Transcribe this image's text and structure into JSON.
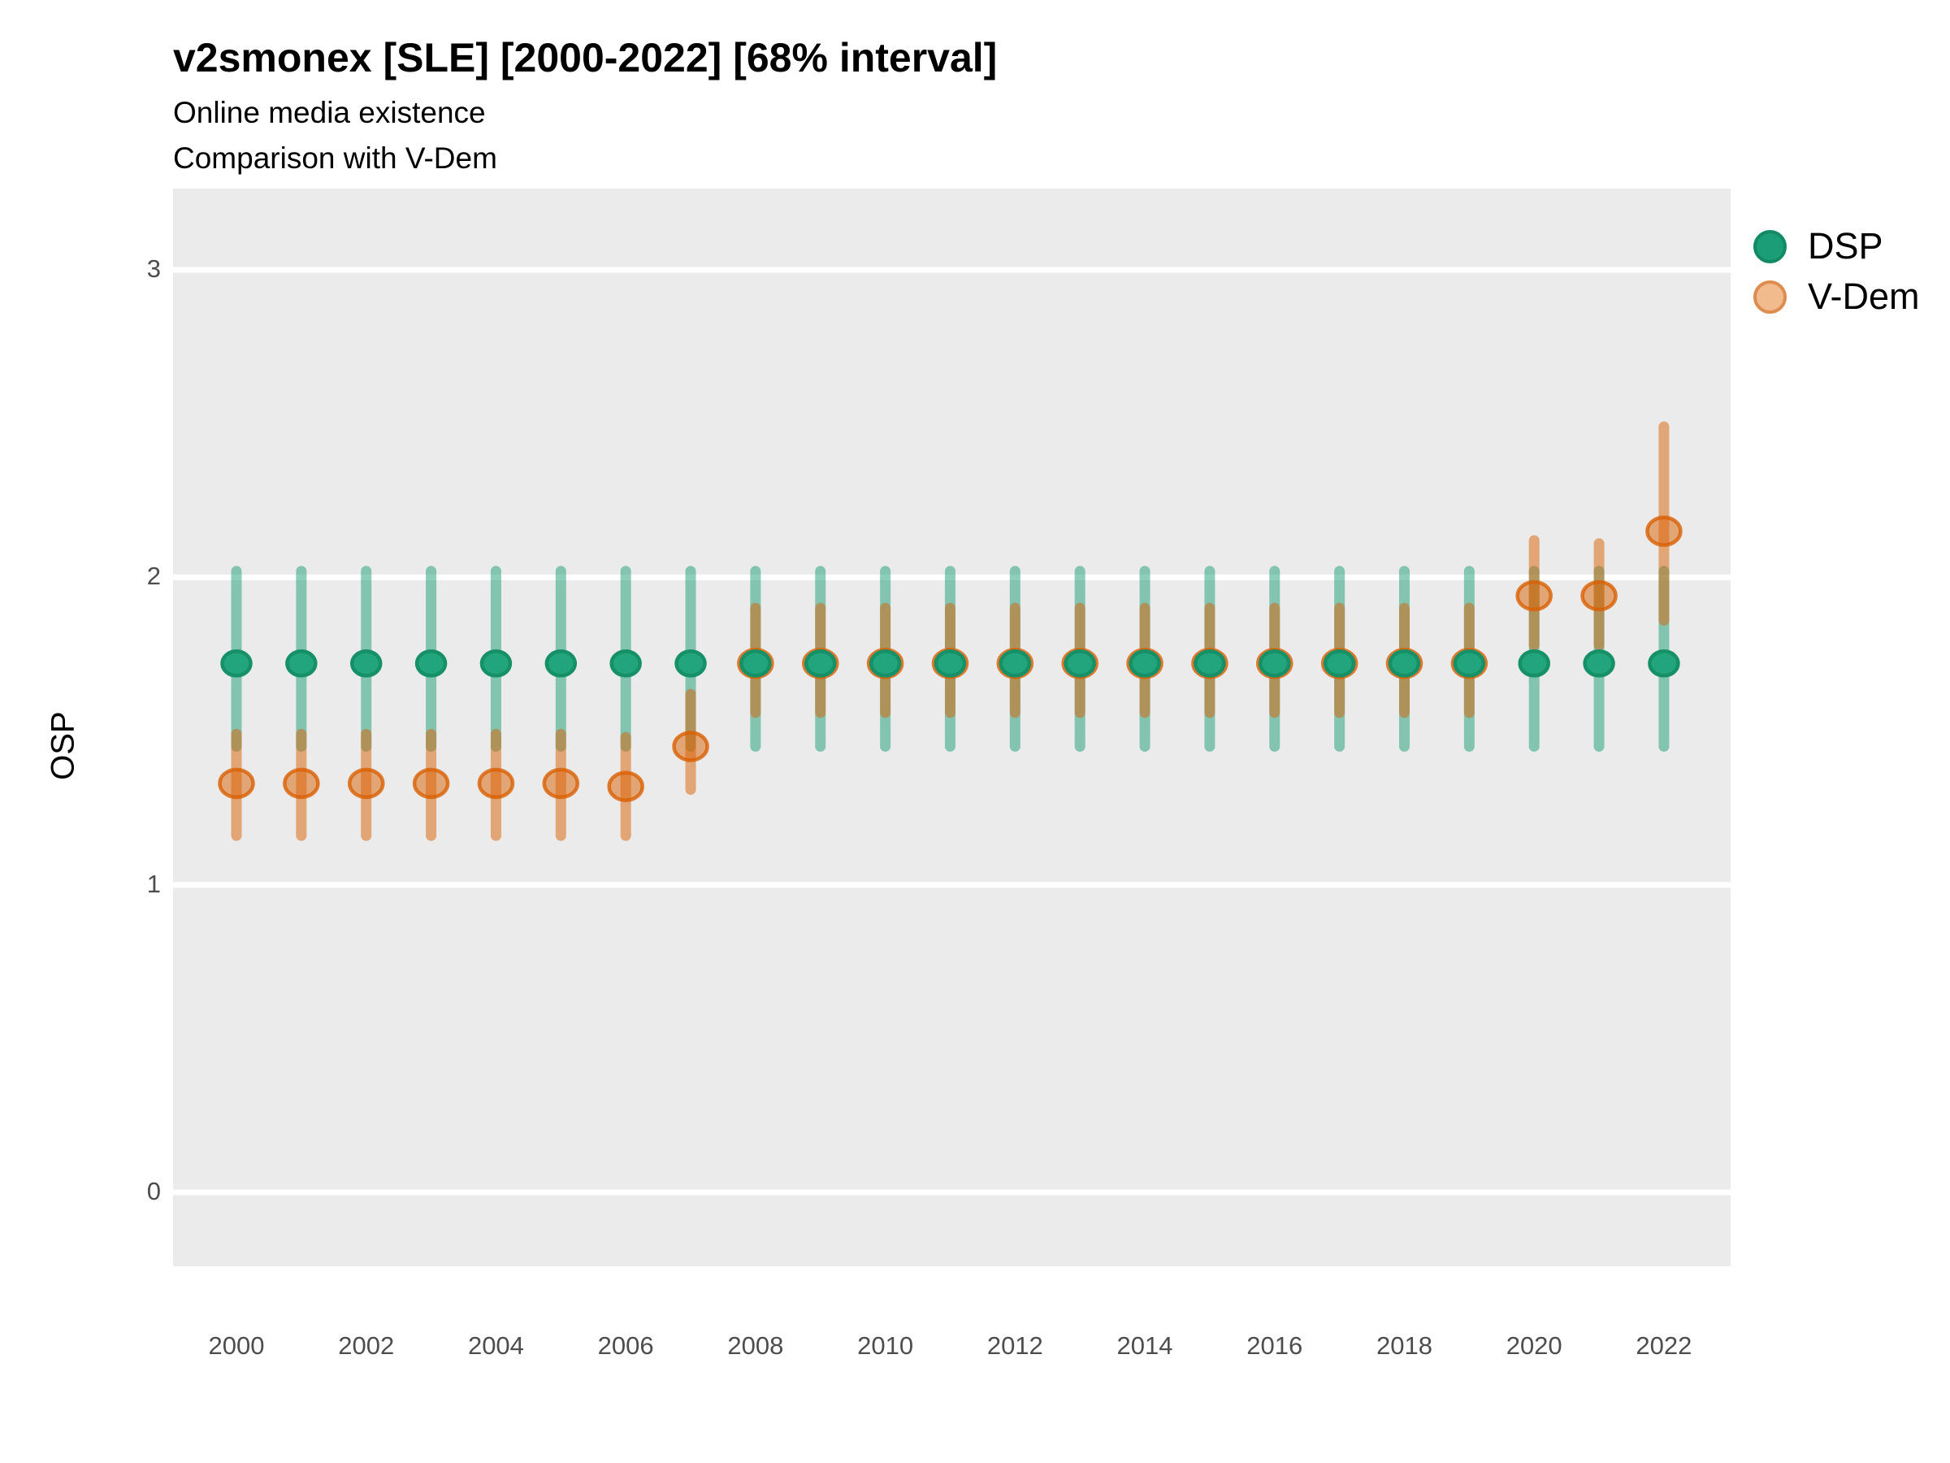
{
  "title": "v2smonex [SLE] [2000-2022] [68% interval]",
  "subtitle_line1": "Online media existence",
  "subtitle_line2": "Comparison with V-Dem",
  "y_axis": {
    "label": "OSP",
    "ticks": [
      0,
      1,
      2,
      3
    ]
  },
  "x_axis": {
    "ticks": [
      2000,
      2002,
      2004,
      2006,
      2008,
      2010,
      2012,
      2014,
      2016,
      2018,
      2020,
      2022
    ]
  },
  "legend": {
    "items": [
      {
        "label": "DSP"
      },
      {
        "label": "V-Dem"
      }
    ]
  },
  "colors": {
    "dsp": "#1b9e77",
    "vdem": "#d95f02",
    "panel_bg": "#ebebeb",
    "gridline": "#ffffff",
    "tick_label": "#4d4d4d"
  },
  "chart_data": {
    "type": "pointrange",
    "title": "v2smonex [SLE] [2000-2022] [68% interval]",
    "interval_level": "68%",
    "xlabel": "",
    "ylabel": "OSP",
    "x_ticks": [
      2000,
      2002,
      2004,
      2006,
      2008,
      2010,
      2012,
      2014,
      2016,
      2018,
      2020,
      2022
    ],
    "y_ticks": [
      0,
      1,
      2,
      3
    ],
    "y_range_shown": [
      -0.26,
      3.27
    ],
    "grid": "horizontal-major-only",
    "legend_position": "right-top",
    "years": [
      2000,
      2001,
      2002,
      2003,
      2004,
      2005,
      2006,
      2007,
      2008,
      2009,
      2010,
      2011,
      2012,
      2013,
      2014,
      2015,
      2016,
      2017,
      2018,
      2019,
      2020,
      2021,
      2022
    ],
    "series": [
      {
        "name": "DSP",
        "color": "#1b9e77",
        "values": [
          1.72,
          1.72,
          1.72,
          1.72,
          1.72,
          1.72,
          1.72,
          1.72,
          1.72,
          1.72,
          1.72,
          1.72,
          1.72,
          1.72,
          1.72,
          1.72,
          1.72,
          1.72,
          1.72,
          1.72,
          1.72,
          1.72,
          1.72
        ],
        "lo": [
          1.45,
          1.45,
          1.45,
          1.45,
          1.45,
          1.45,
          1.45,
          1.45,
          1.45,
          1.45,
          1.45,
          1.45,
          1.45,
          1.45,
          1.45,
          1.45,
          1.45,
          1.45,
          1.45,
          1.45,
          1.45,
          1.45,
          1.45
        ],
        "hi": [
          2.02,
          2.02,
          2.02,
          2.02,
          2.02,
          2.02,
          2.02,
          2.02,
          2.02,
          2.02,
          2.02,
          2.02,
          2.02,
          2.02,
          2.02,
          2.02,
          2.02,
          2.02,
          2.02,
          2.02,
          2.02,
          2.02,
          2.02
        ]
      },
      {
        "name": "V-Dem",
        "color": "#d95f02",
        "values": [
          1.33,
          1.33,
          1.33,
          1.33,
          1.33,
          1.33,
          1.32,
          1.45,
          1.72,
          1.72,
          1.72,
          1.72,
          1.72,
          1.72,
          1.72,
          1.72,
          1.72,
          1.72,
          1.72,
          1.72,
          1.94,
          1.94,
          2.15
        ],
        "lo": [
          1.16,
          1.16,
          1.16,
          1.16,
          1.16,
          1.16,
          1.16,
          1.31,
          1.56,
          1.56,
          1.56,
          1.56,
          1.56,
          1.56,
          1.56,
          1.56,
          1.56,
          1.56,
          1.56,
          1.56,
          1.78,
          1.78,
          1.86
        ],
        "hi": [
          1.49,
          1.49,
          1.49,
          1.49,
          1.49,
          1.49,
          1.48,
          1.62,
          1.9,
          1.9,
          1.9,
          1.9,
          1.9,
          1.9,
          1.9,
          1.9,
          1.9,
          1.9,
          1.9,
          1.9,
          2.12,
          2.11,
          2.49
        ]
      }
    ]
  }
}
